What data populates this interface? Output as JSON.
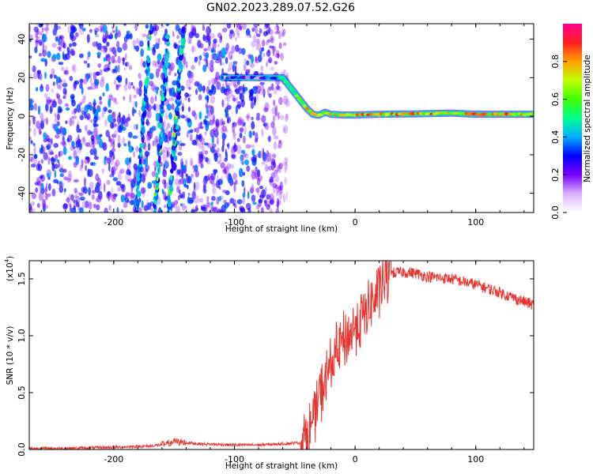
{
  "title": "GN02.2023.289.07.52.G26",
  "chart_data": [
    {
      "type": "heatmap",
      "xlabel": "Height of straight line (km)",
      "ylabel": "Frequency (Hz)",
      "xlim": [
        -270,
        148
      ],
      "ylim": [
        -50,
        48
      ],
      "xticks": [
        -200,
        -100,
        0,
        100
      ],
      "xtick_labels": [
        "-200",
        "-100",
        "0",
        "100"
      ],
      "yticks": [
        -40,
        -20,
        0,
        20,
        40
      ],
      "ytick_labels": [
        "-40",
        "-20",
        "0",
        "20",
        "40"
      ],
      "colorbar": {
        "label": "Normalized spectral amplitude",
        "range": [
          0.0,
          1.0
        ],
        "ticks": [
          0.0,
          0.2,
          0.4,
          0.6,
          0.8
        ],
        "tick_labels": [
          "0.0",
          "0.2",
          "0.4",
          "0.6",
          "0.8"
        ],
        "colors": [
          "#ffffff",
          "#d9b3ff",
          "#7b00ff",
          "#0000ff",
          "#00b0ff",
          "#00ff90",
          "#40ff00",
          "#c0ff00",
          "#ffa000",
          "#ff2020",
          "#ff0090"
        ]
      },
      "noise_region_x": [
        -270,
        -65
      ],
      "ridge": {
        "x": [
          -110,
          -65,
          -60,
          -55,
          -50,
          -45,
          -40,
          -35,
          -30,
          -25,
          -20,
          -10,
          0,
          20,
          50,
          80,
          100,
          148
        ],
        "freq": [
          20,
          20,
          20,
          16,
          12,
          8,
          4,
          1,
          0.5,
          2,
          1,
          0.6,
          0.6,
          1,
          1.2,
          1.6,
          1,
          1
        ],
        "amplitude": [
          0.35,
          0.5,
          0.55,
          0.7,
          0.8,
          0.85,
          0.9,
          0.95,
          0.9,
          0.8,
          0.85,
          0.9,
          0.9,
          0.92,
          0.9,
          0.95,
          0.92,
          0.9
        ]
      },
      "streaks": [
        {
          "x": -175,
          "freq_range": [
            -50,
            48
          ]
        },
        {
          "x": -160,
          "freq_range": [
            -50,
            42
          ]
        },
        {
          "x": -148,
          "freq_range": [
            -50,
            45
          ]
        }
      ]
    },
    {
      "type": "line",
      "xlabel": "Height of straight line (km)",
      "ylabel": "SNR (10 * v/v)",
      "multiplier_label": "(x10",
      "multiplier_exp": "4",
      "xlim": [
        -270,
        148
      ],
      "ylim": [
        0,
        1.66
      ],
      "xticks": [
        -200,
        -100,
        0,
        100
      ],
      "xtick_labels": [
        "-200",
        "-100",
        "0",
        "100"
      ],
      "yticks": [
        0.0,
        0.5,
        1.0,
        1.5
      ],
      "ytick_labels": [
        "0.0",
        "0.5",
        "1.0",
        "1.5"
      ],
      "line_color": "#e8332e",
      "series": [
        {
          "x": [
            -270,
            -240,
            -200,
            -170,
            -155,
            -150,
            -130,
            -100,
            -80,
            -60,
            -45,
            -40,
            -35,
            -30,
            -25,
            -20,
            -15,
            -10,
            -5,
            0,
            5,
            10,
            15,
            20,
            25,
            30,
            40,
            50,
            60,
            80,
            100,
            120,
            135,
            148
          ],
          "y": [
            0.01,
            0.01,
            0.02,
            0.03,
            0.05,
            0.07,
            0.05,
            0.04,
            0.04,
            0.05,
            0.06,
            0.1,
            0.25,
            0.45,
            0.6,
            0.75,
            0.85,
            0.95,
            1.0,
            1.08,
            1.15,
            1.22,
            1.3,
            1.4,
            1.5,
            1.55,
            1.56,
            1.55,
            1.52,
            1.5,
            1.45,
            1.38,
            1.32,
            1.27
          ]
        }
      ]
    }
  ]
}
